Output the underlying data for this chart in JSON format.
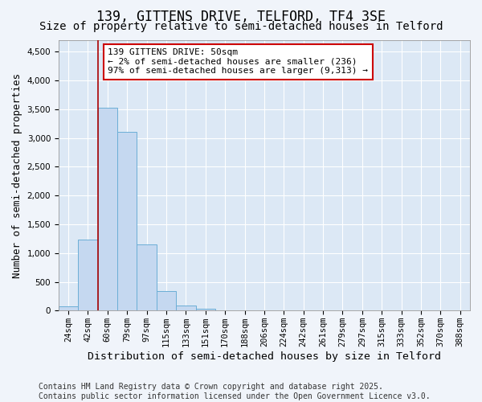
{
  "title": "139, GITTENS DRIVE, TELFORD, TF4 3SE",
  "subtitle": "Size of property relative to semi-detached houses in Telford",
  "xlabel": "Distribution of semi-detached houses by size in Telford",
  "ylabel": "Number of semi-detached properties",
  "categories": [
    "24sqm",
    "42sqm",
    "60sqm",
    "79sqm",
    "97sqm",
    "115sqm",
    "133sqm",
    "151sqm",
    "170sqm",
    "188sqm",
    "206sqm",
    "224sqm",
    "242sqm",
    "261sqm",
    "279sqm",
    "297sqm",
    "315sqm",
    "333sqm",
    "352sqm",
    "370sqm",
    "388sqm"
  ],
  "values": [
    80,
    1230,
    3520,
    3100,
    1150,
    340,
    95,
    30,
    5,
    2,
    1,
    0,
    0,
    0,
    0,
    0,
    0,
    0,
    0,
    0,
    0
  ],
  "bar_color": "#c5d8f0",
  "bar_edgecolor": "#6baed6",
  "redline_x": 1.5,
  "highlight_color": "#aa0000",
  "annotation_text": "139 GITTENS DRIVE: 50sqm\n← 2% of semi-detached houses are smaller (236)\n97% of semi-detached houses are larger (9,313) →",
  "annotation_box_color": "#ffffff",
  "annotation_box_edgecolor": "#cc0000",
  "ylim": [
    0,
    4700
  ],
  "yticks": [
    0,
    500,
    1000,
    1500,
    2000,
    2500,
    3000,
    3500,
    4000,
    4500
  ],
  "footnote": "Contains HM Land Registry data © Crown copyright and database right 2025.\nContains public sector information licensed under the Open Government Licence v3.0.",
  "fig_bg_color": "#f0f4fa",
  "plot_bg_color": "#dce8f5",
  "grid_color": "#ffffff",
  "title_fontsize": 12,
  "subtitle_fontsize": 10,
  "axis_label_fontsize": 9,
  "tick_fontsize": 7.5,
  "annotation_fontsize": 8,
  "footnote_fontsize": 7
}
